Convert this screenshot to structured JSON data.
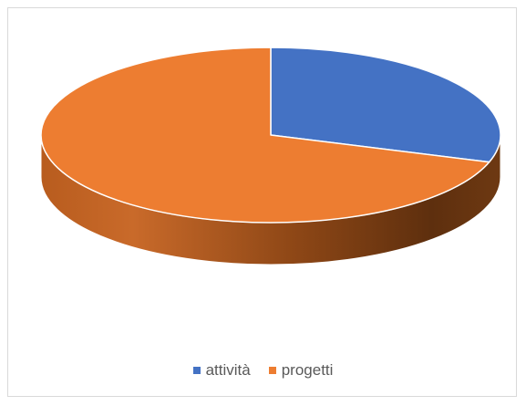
{
  "chart_data": {
    "type": "pie",
    "title": "",
    "legend_position": "bottom",
    "series": [
      {
        "name": "attività",
        "value": 30,
        "color": "#4472C4"
      },
      {
        "name": "progetti",
        "value": 70,
        "color": "#ED7D31"
      }
    ]
  },
  "legend": {
    "items": [
      {
        "label": "attività",
        "color": "#4472C4"
      },
      {
        "label": "progetti",
        "color": "#ED7D31"
      }
    ]
  }
}
